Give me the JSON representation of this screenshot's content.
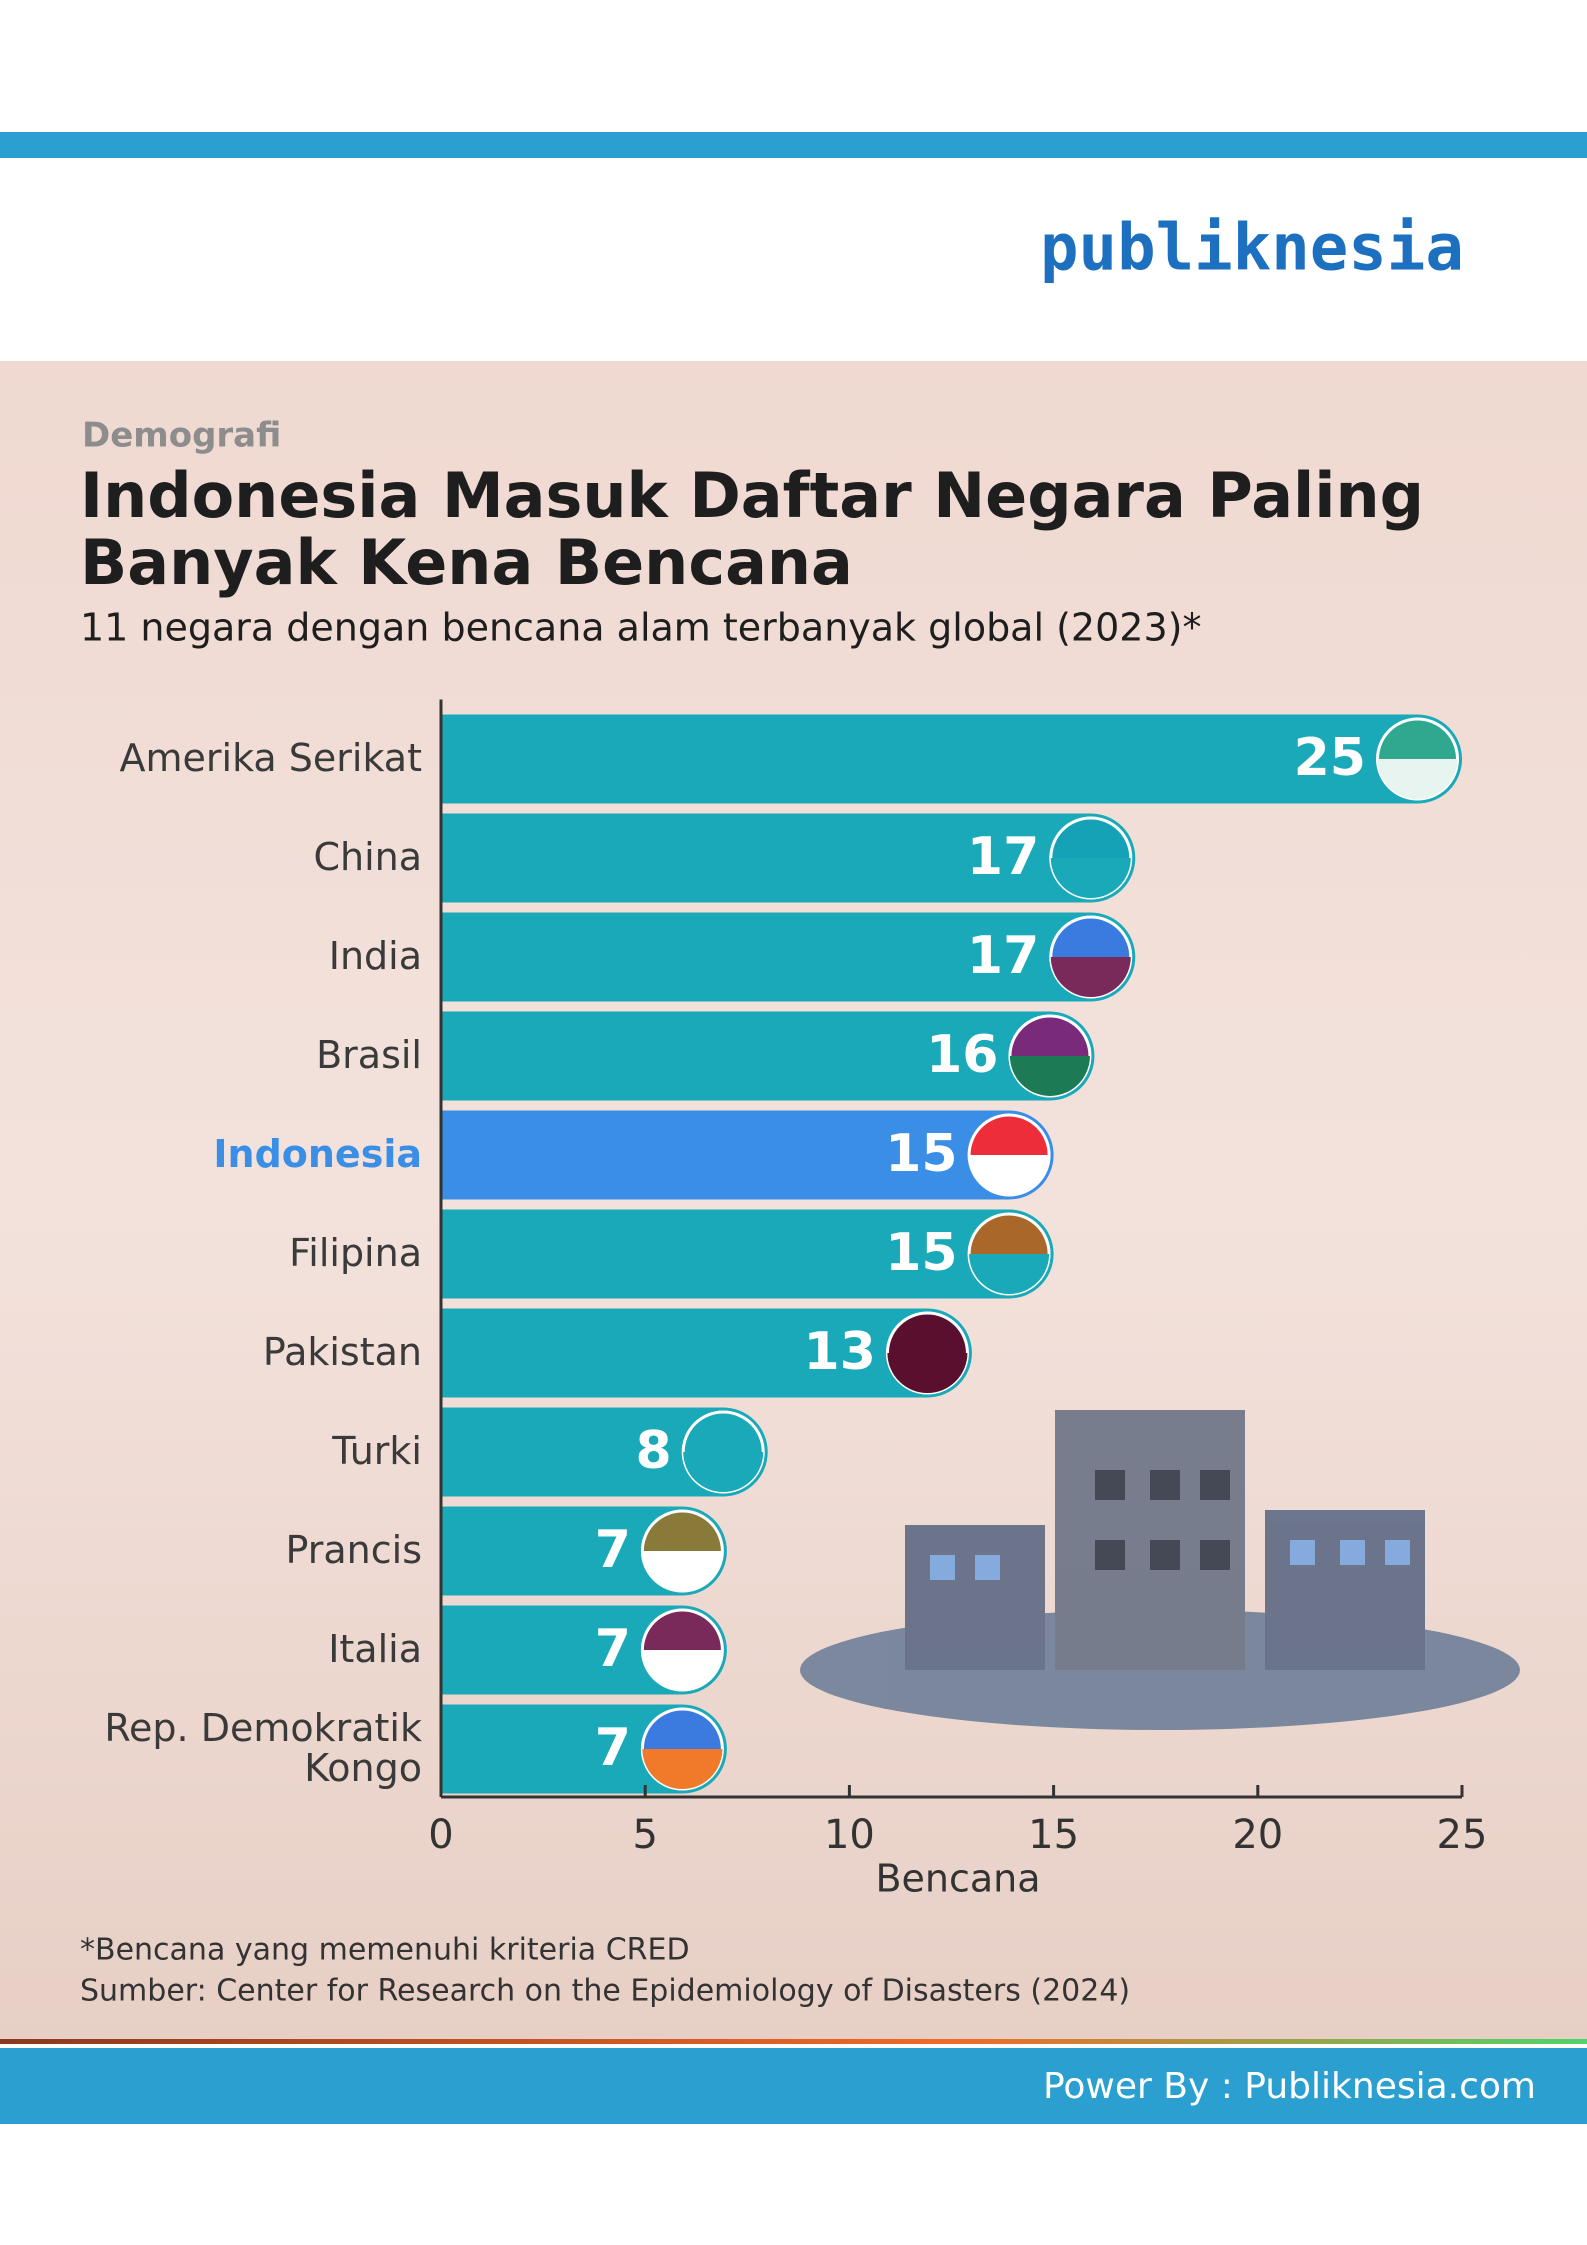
{
  "header": {
    "logo": "publiknesia"
  },
  "footer": {
    "credit": "Power By : Publiknesia.com"
  },
  "chart_data": {
    "type": "bar",
    "orientation": "horizontal",
    "kicker": "Demografi",
    "title": [
      "Indonesia Masuk Daftar Negara Paling",
      "Banyak Kena Bencana"
    ],
    "subtitle": "11 negara dengan bencana alam terbanyak global (2023)*",
    "categories": [
      "Amerika Serikat",
      "China",
      "India",
      "Brasil",
      "Indonesia",
      "Filipina",
      "Pakistan",
      "Turki",
      "Prancis",
      "Italia",
      "Rep. Demokratik Kongo"
    ],
    "values": [
      25,
      17,
      17,
      16,
      15,
      15,
      13,
      8,
      7,
      7,
      7
    ],
    "color": "#1aa9b8",
    "highlight": "Indonesia",
    "highlight_color": "#3a8ee6",
    "xlim": [
      0,
      25
    ],
    "xticks": [
      0,
      5,
      10,
      15,
      20,
      25
    ],
    "xlabel": "Bencana",
    "notes": [
      "*Bencana yang memenuhi kriteria CRED",
      "Sumber: Center for Research on the Epidemiology of Disasters (2024)"
    ]
  }
}
